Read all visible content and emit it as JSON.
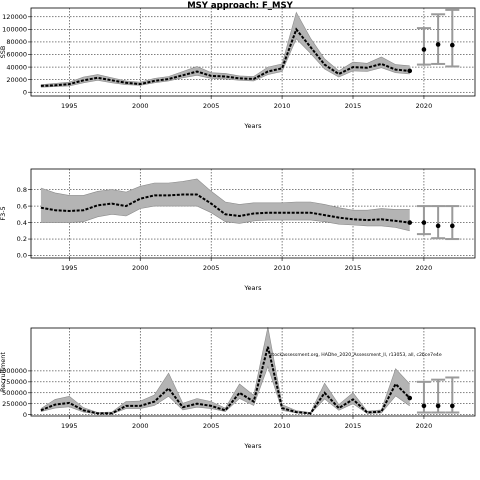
{
  "figure": {
    "title": "MSY approach: F_MSY"
  },
  "chart_data": [
    {
      "type": "line",
      "xlabel": "Years",
      "ylabel": "SSB",
      "xlim": [
        1992.3,
        2023.6
      ],
      "ylim": [
        -6000,
        134000
      ],
      "xticks": [
        1995,
        2000,
        2005,
        2010,
        2015,
        2020
      ],
      "yticks": [
        0,
        20000,
        40000,
        60000,
        80000,
        100000,
        120000
      ],
      "ytick_labels": [
        "0",
        "20000",
        "40000",
        "60000",
        "80000",
        "100000",
        "120000"
      ],
      "grid": true,
      "x": [
        1993,
        1994,
        1995,
        1996,
        1997,
        1998,
        1999,
        2000,
        2001,
        2002,
        2003,
        2004,
        2005,
        2006,
        2007,
        2008,
        2009,
        2010,
        2011,
        2012,
        2013,
        2014,
        2015,
        2016,
        2017,
        2018,
        2019
      ],
      "median": [
        10000,
        11000,
        13000,
        19000,
        23000,
        19000,
        15000,
        13000,
        18000,
        21000,
        27000,
        33000,
        26000,
        25000,
        22000,
        21000,
        33000,
        38000,
        100000,
        72000,
        44000,
        29000,
        40000,
        39000,
        45000,
        36000,
        34000
      ],
      "lower": [
        8000,
        9000,
        10000,
        15000,
        19000,
        15000,
        12000,
        11000,
        15000,
        18000,
        23000,
        27000,
        22000,
        21000,
        19000,
        18000,
        28000,
        33000,
        85000,
        62000,
        37000,
        24000,
        34000,
        33000,
        39000,
        31000,
        29000
      ],
      "upper": [
        12000,
        14000,
        16000,
        24000,
        28000,
        23000,
        18000,
        16000,
        22000,
        25000,
        33000,
        41000,
        31000,
        30000,
        26000,
        25000,
        40000,
        45000,
        127000,
        86000,
        53000,
        34000,
        48000,
        46000,
        56000,
        44000,
        42000
      ],
      "projection": {
        "x": [
          2020,
          2021,
          2022
        ],
        "median": [
          68000,
          76000,
          75000
        ],
        "lower": [
          44000,
          45000,
          41000
        ],
        "upper": [
          102000,
          124000,
          131000
        ]
      }
    },
    {
      "type": "line",
      "xlabel": "Years",
      "ylabel": "F3-5",
      "xlim": [
        1992.3,
        2023.6
      ],
      "ylim": [
        -0.03,
        1.05
      ],
      "xticks": [
        1995,
        2000,
        2005,
        2010,
        2015,
        2020
      ],
      "yticks": [
        0.0,
        0.2,
        0.4,
        0.6,
        0.8
      ],
      "ytick_labels": [
        "0.0",
        "0.2",
        "0.4",
        "0.6",
        "0.8"
      ],
      "grid": true,
      "x": [
        1993,
        1994,
        1995,
        1996,
        1997,
        1998,
        1999,
        2000,
        2001,
        2002,
        2003,
        2004,
        2005,
        2006,
        2007,
        2008,
        2009,
        2010,
        2011,
        2012,
        2013,
        2014,
        2015,
        2016,
        2017,
        2018,
        2019
      ],
      "median": [
        0.58,
        0.55,
        0.54,
        0.55,
        0.61,
        0.63,
        0.6,
        0.69,
        0.73,
        0.73,
        0.74,
        0.74,
        0.63,
        0.5,
        0.48,
        0.51,
        0.52,
        0.52,
        0.52,
        0.52,
        0.49,
        0.46,
        0.44,
        0.43,
        0.44,
        0.42,
        0.4
      ],
      "lower": [
        0.4,
        0.4,
        0.4,
        0.41,
        0.47,
        0.5,
        0.48,
        0.57,
        0.6,
        0.6,
        0.6,
        0.6,
        0.52,
        0.41,
        0.39,
        0.42,
        0.43,
        0.43,
        0.43,
        0.43,
        0.41,
        0.38,
        0.37,
        0.36,
        0.36,
        0.34,
        0.3
      ],
      "upper": [
        0.82,
        0.76,
        0.73,
        0.73,
        0.78,
        0.8,
        0.77,
        0.84,
        0.88,
        0.88,
        0.9,
        0.93,
        0.78,
        0.65,
        0.62,
        0.64,
        0.64,
        0.64,
        0.65,
        0.65,
        0.62,
        0.58,
        0.55,
        0.55,
        0.57,
        0.56,
        0.56
      ],
      "projection": {
        "x": [
          2020,
          2021,
          2022
        ],
        "median": [
          0.4,
          0.36,
          0.36
        ],
        "lower": [
          0.26,
          0.21,
          0.2
        ],
        "upper": [
          0.6,
          0.6,
          0.6
        ]
      }
    },
    {
      "type": "line",
      "xlabel": "Years",
      "ylabel": "Recruitment",
      "xlim": [
        1992.3,
        2023.6
      ],
      "ylim": [
        -30000,
        1980000
      ],
      "xticks": [
        1995,
        2000,
        2005,
        2010,
        2015,
        2020
      ],
      "yticks": [
        0,
        250000,
        500000,
        750000,
        1000000
      ],
      "ytick_labels": [
        "0",
        "250000",
        "500000",
        "750000",
        "1000000"
      ],
      "grid": true,
      "annotation": "stockassessment.org, HADhe_2020_Assessment_ll, r13053, all, c2bce7e4e",
      "x": [
        1993,
        1994,
        1995,
        1996,
        1997,
        1998,
        1999,
        2000,
        2001,
        2002,
        2003,
        2004,
        2005,
        2006,
        2007,
        2008,
        2009,
        2010,
        2011,
        2012,
        2013,
        2014,
        2015,
        2016,
        2017,
        2018,
        2019
      ],
      "median": [
        100000,
        230000,
        270000,
        100000,
        30000,
        30000,
        200000,
        200000,
        300000,
        600000,
        170000,
        250000,
        200000,
        100000,
        500000,
        300000,
        1550000,
        150000,
        60000,
        30000,
        500000,
        150000,
        350000,
        50000,
        70000,
        700000,
        380000
      ],
      "lower": [
        70000,
        150000,
        180000,
        60000,
        15000,
        15000,
        140000,
        140000,
        210000,
        420000,
        110000,
        170000,
        140000,
        70000,
        370000,
        210000,
        1100000,
        100000,
        40000,
        20000,
        360000,
        100000,
        250000,
        30000,
        40000,
        430000,
        200000
      ],
      "upper": [
        140000,
        350000,
        420000,
        160000,
        50000,
        60000,
        300000,
        310000,
        450000,
        950000,
        260000,
        370000,
        300000,
        150000,
        700000,
        440000,
        2000000,
        230000,
        90000,
        50000,
        720000,
        230000,
        500000,
        80000,
        110000,
        1050000,
        700000
      ],
      "projection": {
        "x": [
          2020,
          2021,
          2022
        ],
        "median": [
          200000,
          200000,
          200000
        ],
        "lower": [
          50000,
          50000,
          50000
        ],
        "upper": [
          750000,
          800000,
          850000
        ]
      }
    }
  ]
}
